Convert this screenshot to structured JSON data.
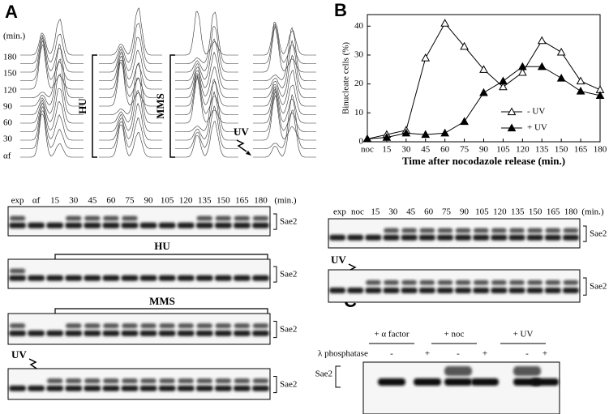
{
  "panel_a": {
    "label": "A",
    "flow": {
      "unit": "(min.)",
      "times": [
        "180",
        "150",
        "120",
        "90",
        "60",
        "30",
        "αf"
      ],
      "treatments": [
        "HU",
        "MMS",
        "UV"
      ]
    },
    "blot": {
      "lanes": [
        "exp",
        "αf",
        "15",
        "30",
        "45",
        "60",
        "75",
        "90",
        "105",
        "120",
        "135",
        "150",
        "165",
        "180"
      ],
      "unit": "(min.)",
      "protein": "Sae2",
      "treatments": [
        "HU",
        "MMS",
        "UV"
      ]
    }
  },
  "chart_data": {
    "type": "line",
    "label": "B",
    "x_label": "Time after nocodazole release (min.)",
    "y_label": "Binucleate cells (%)",
    "categories": [
      "noc",
      "15",
      "30",
      "45",
      "60",
      "75",
      "90",
      "105",
      "120",
      "135",
      "150",
      "165",
      "180"
    ],
    "series": [
      {
        "name": "- UV",
        "color": "#000000",
        "marker": "open",
        "values": [
          1,
          2.5,
          4,
          29,
          41,
          33,
          25,
          19,
          24,
          35,
          31,
          21,
          18
        ]
      },
      {
        "name": "+ UV",
        "color": "#000000",
        "marker": "filled",
        "values": [
          1,
          1.5,
          3,
          2.5,
          3,
          7,
          17,
          21,
          26,
          26,
          22,
          17.5,
          16
        ]
      }
    ],
    "ylim": [
      0,
      44
    ],
    "yticks": [
      0,
      10,
      20,
      30,
      40
    ],
    "grid": false,
    "legend": "right"
  },
  "panel_b_blot": {
    "lanes": [
      "exp",
      "noc",
      "15",
      "30",
      "45",
      "60",
      "75",
      "90",
      "105",
      "120",
      "135",
      "150",
      "165",
      "180"
    ],
    "unit": "(min.)",
    "protein": "Sae2",
    "treatment": "UV"
  },
  "panel_c": {
    "label": "C",
    "conditions": [
      "+ α factor",
      "+ noc",
      "+ UV"
    ],
    "enzyme": "λ phosphatase",
    "signs": [
      "-",
      "+",
      "-",
      "+",
      "-",
      "+"
    ],
    "protein": "Sae2"
  }
}
